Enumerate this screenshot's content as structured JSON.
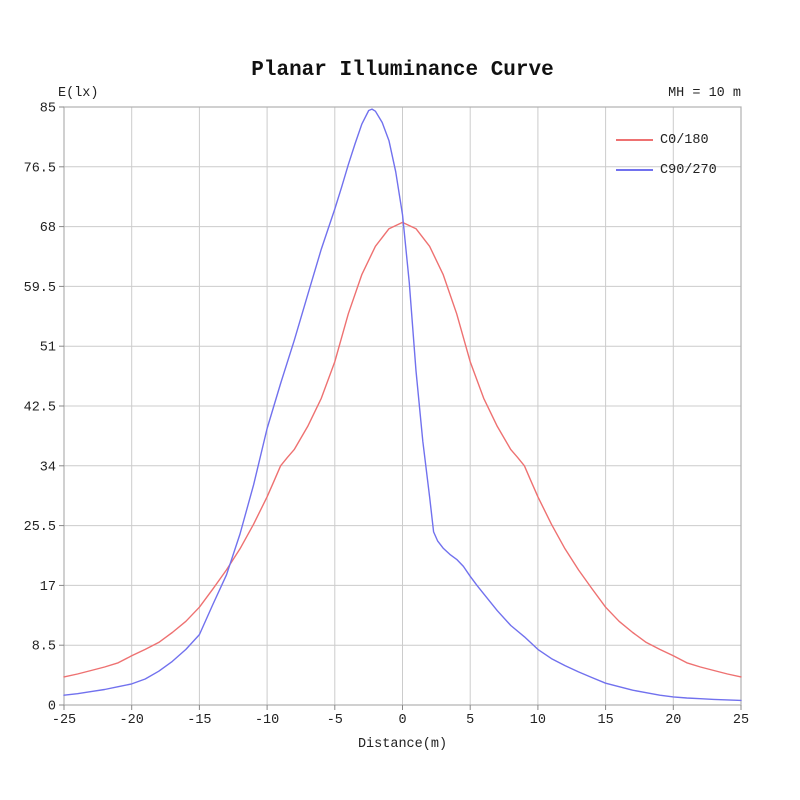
{
  "chart_data": {
    "type": "line",
    "title": "Planar Illuminance Curve",
    "ylabel": "E(lx)",
    "xlabel": "Distance(m)",
    "annotation": "MH = 10 m",
    "xlim": [
      -25,
      25
    ],
    "ylim": [
      0,
      85
    ],
    "xticks": [
      -25,
      -20,
      -15,
      -10,
      -5,
      0,
      5,
      10,
      15,
      20,
      25
    ],
    "yticks": [
      0,
      8.5,
      17,
      25.5,
      34,
      42.5,
      51,
      59.5,
      68,
      76.5,
      85
    ],
    "grid": true,
    "legend_position": "top-right-inside",
    "colors": {
      "grid": "#cccccc",
      "frame": "#b0b0b0",
      "tick": "#888888",
      "text": "#222222",
      "background": "#ffffff"
    },
    "series": [
      {
        "name": "C0/180",
        "color": "#ee7171",
        "x": [
          -25,
          -24,
          -23,
          -22,
          -21,
          -20,
          -19,
          -18,
          -17,
          -16,
          -15,
          -14,
          -13,
          -12,
          -11,
          -10,
          -9.5,
          -9,
          -8.5,
          -8,
          -7,
          -6,
          -5,
          -4,
          -3,
          -2,
          -1,
          0,
          1,
          2,
          3,
          4,
          5,
          6,
          7,
          8,
          8.5,
          9,
          9.5,
          10,
          11,
          12,
          13,
          14,
          15,
          16,
          17,
          18,
          19,
          20,
          21,
          22,
          23,
          24,
          25
        ],
        "y": [
          4.0,
          4.4,
          4.9,
          5.4,
          6.0,
          7.0,
          7.9,
          8.9,
          10.3,
          11.9,
          13.9,
          16.5,
          19.2,
          22.2,
          25.7,
          29.6,
          31.8,
          34.0,
          35.2,
          36.3,
          39.6,
          43.6,
          48.8,
          55.6,
          61.2,
          65.2,
          67.7,
          68.6,
          67.7,
          65.2,
          61.2,
          55.6,
          48.8,
          43.6,
          39.6,
          36.3,
          35.2,
          34.0,
          31.8,
          29.6,
          25.7,
          22.2,
          19.2,
          16.5,
          13.9,
          11.9,
          10.3,
          8.9,
          7.9,
          7.0,
          6.0,
          5.4,
          4.9,
          4.4,
          4.0
        ]
      },
      {
        "name": "C90/270",
        "color": "#7171ee",
        "x": [
          -25,
          -24,
          -23,
          -22,
          -21,
          -20,
          -19,
          -18,
          -17,
          -16,
          -15,
          -14,
          -13,
          -12,
          -11,
          -10,
          -9,
          -8,
          -7,
          -6,
          -5,
          -4.5,
          -4,
          -3.5,
          -3,
          -2.5,
          -2.25,
          -2,
          -1.5,
          -1,
          -0.5,
          0,
          0.5,
          1,
          1.5,
          2,
          2.3,
          2.6,
          3,
          3.5,
          4,
          4.5,
          5,
          5.5,
          6,
          7,
          8,
          9,
          10,
          11,
          12,
          13,
          14,
          15,
          16,
          17,
          18,
          19,
          20,
          21,
          22,
          23,
          24,
          25
        ],
        "y": [
          1.4,
          1.6,
          1.9,
          2.2,
          2.6,
          3.0,
          3.7,
          4.8,
          6.2,
          7.9,
          10.0,
          14.3,
          18.5,
          24.3,
          31.3,
          39.3,
          45.7,
          51.8,
          58.3,
          64.8,
          70.5,
          73.6,
          76.8,
          79.8,
          82.6,
          84.5,
          84.7,
          84.4,
          82.8,
          80.2,
          75.8,
          69.7,
          60.0,
          47.5,
          37.5,
          29.6,
          24.6,
          23.3,
          22.3,
          21.4,
          20.7,
          19.7,
          18.3,
          17.0,
          15.8,
          13.4,
          11.3,
          9.7,
          7.9,
          6.6,
          5.6,
          4.7,
          3.9,
          3.1,
          2.6,
          2.1,
          1.75,
          1.4,
          1.15,
          1.0,
          0.9,
          0.8,
          0.72,
          0.65
        ]
      }
    ]
  }
}
